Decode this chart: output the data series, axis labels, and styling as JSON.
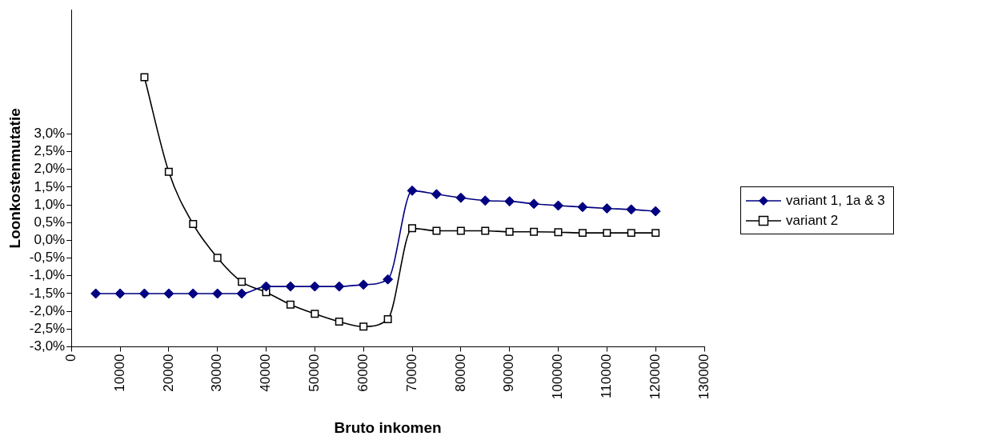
{
  "chart_data": {
    "type": "line",
    "xlabel": "Bruto inkomen",
    "ylabel": "Loonkostenmutatie",
    "x": [
      5000,
      10000,
      15000,
      20000,
      25000,
      30000,
      35000,
      40000,
      45000,
      50000,
      55000,
      60000,
      65000,
      70000,
      75000,
      80000,
      85000,
      90000,
      95000,
      100000,
      105000,
      110000,
      115000,
      120000
    ],
    "series": [
      {
        "name": "variant 1, 1a & 3",
        "color": "#000080",
        "marker": "diamond",
        "values": [
          -1.5,
          -1.5,
          -1.5,
          -1.5,
          -1.5,
          -1.5,
          -1.5,
          -1.3,
          -1.3,
          -1.3,
          -1.3,
          -1.25,
          -1.1,
          1.4,
          1.3,
          1.2,
          1.12,
          1.1,
          1.03,
          0.98,
          0.94,
          0.9,
          0.87,
          0.82
        ]
      },
      {
        "name": "variant 2",
        "color": "#000000",
        "marker": "square",
        "values": [
          null,
          null,
          4.6,
          1.93,
          0.46,
          -0.49,
          -1.17,
          -1.46,
          -1.81,
          -2.07,
          -2.29,
          -2.43,
          -2.22,
          0.34,
          0.27,
          0.27,
          0.27,
          0.24,
          0.24,
          0.23,
          0.21,
          0.21,
          0.21,
          0.21
        ]
      }
    ],
    "xlim": [
      0,
      130000
    ],
    "xticks": [
      0,
      10000,
      20000,
      30000,
      40000,
      50000,
      60000,
      70000,
      80000,
      90000,
      100000,
      110000,
      120000,
      130000
    ],
    "ylim": [
      -3,
      6.5
    ],
    "yticks": [
      {
        "value": -3,
        "label": "-3,0%"
      },
      {
        "value": -2.5,
        "label": "-2,5%"
      },
      {
        "value": -2,
        "label": "-2,0%"
      },
      {
        "value": -1.5,
        "label": "-1,5%"
      },
      {
        "value": -1,
        "label": "-1,0%"
      },
      {
        "value": -0.5,
        "label": "-0,5%"
      },
      {
        "value": 0,
        "label": "0,0%"
      },
      {
        "value": 0.5,
        "label": "0,5%"
      },
      {
        "value": 1,
        "label": "1,0%"
      },
      {
        "value": 1.5,
        "label": "1,5%"
      },
      {
        "value": 2,
        "label": "2,0%"
      },
      {
        "value": 2.5,
        "label": "2,5%"
      },
      {
        "value": 3,
        "label": "3,0%"
      }
    ],
    "grid": false,
    "legend": "right",
    "line_style": "solid"
  }
}
